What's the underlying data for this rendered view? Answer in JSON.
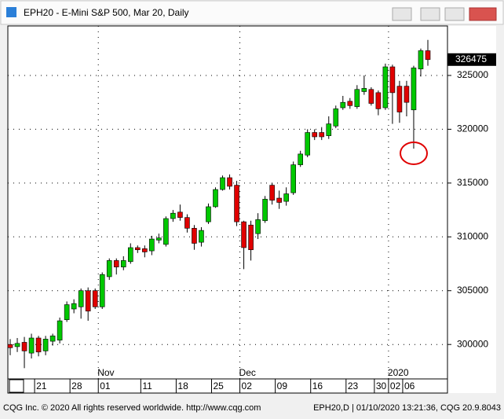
{
  "chart_data": {
    "type": "candlestick",
    "title": "EPH20 - E-Mini S&P 500, Mar 20, Daily",
    "categories": [
      null,
      null,
      null,
      null,
      "21",
      null,
      null,
      null,
      null,
      "28",
      null,
      null,
      null,
      "01",
      null,
      null,
      null,
      null,
      null,
      "11",
      null,
      null,
      null,
      null,
      "18",
      null,
      null,
      null,
      null,
      "25",
      null,
      null,
      null,
      "02",
      null,
      null,
      null,
      null,
      "09",
      null,
      null,
      null,
      null,
      "16",
      null,
      null,
      null,
      null,
      "23",
      null,
      null,
      null,
      "30",
      null,
      "02",
      null,
      "06",
      null,
      null,
      null
    ],
    "month_labels": [
      null,
      null,
      null,
      null,
      null,
      null,
      null,
      null,
      null,
      null,
      null,
      null,
      null,
      "Nov",
      null,
      null,
      null,
      null,
      null,
      null,
      null,
      null,
      null,
      null,
      null,
      null,
      null,
      null,
      null,
      null,
      null,
      null,
      null,
      "Dec",
      null,
      null,
      null,
      null,
      null,
      null,
      null,
      null,
      null,
      null,
      null,
      null,
      null,
      null,
      null,
      null,
      null,
      null,
      null,
      null,
      "2020",
      null,
      null,
      null,
      null,
      null
    ],
    "open": [
      300000,
      299800,
      300200,
      299200,
      300600,
      299400,
      300300,
      300400,
      302300,
      303300,
      303500,
      305000,
      305000,
      303500,
      306300,
      307800,
      307200,
      307700,
      309000,
      308900,
      308700,
      309700,
      309300,
      311700,
      312300,
      311800,
      310800,
      309500,
      311400,
      312800,
      314400,
      315500,
      314800,
      311400,
      311100,
      310300,
      311500,
      314800,
      313600,
      313300,
      314100,
      316700,
      317600,
      319700,
      319700,
      319400,
      320300,
      322000,
      322600,
      322100,
      323500,
      323700,
      323400,
      322000,
      325800,
      324000,
      324000,
      321800,
      325600,
      327300
    ],
    "high": [
      300500,
      300600,
      300700,
      301000,
      300800,
      300800,
      301000,
      302500,
      304000,
      304200,
      305200,
      305300,
      305200,
      306700,
      308000,
      308000,
      308200,
      309400,
      309200,
      309200,
      310100,
      310300,
      311900,
      312500,
      313000,
      312100,
      311100,
      310900,
      313100,
      314600,
      315700,
      315800,
      315200,
      311500,
      311500,
      312200,
      313800,
      315000,
      314300,
      314600,
      317000,
      318000,
      320000,
      320000,
      320200,
      321200,
      322200,
      323100,
      322900,
      324100,
      325000,
      323900,
      323600,
      326100,
      326000,
      324500,
      324500,
      325900,
      327500,
      328300
    ],
    "low": [
      299000,
      299300,
      297800,
      298700,
      298900,
      299000,
      299900,
      300100,
      302100,
      302900,
      302400,
      302200,
      303300,
      303300,
      306000,
      306500,
      306900,
      307500,
      308500,
      308100,
      308300,
      309400,
      309100,
      311400,
      311500,
      310400,
      308800,
      309100,
      311200,
      312700,
      314300,
      314400,
      311000,
      307000,
      307800,
      309800,
      311300,
      313000,
      312600,
      312900,
      313900,
      316500,
      317400,
      319000,
      319000,
      319100,
      320100,
      321800,
      321900,
      321900,
      323200,
      322200,
      321300,
      321800,
      320500,
      320600,
      321200,
      318200,
      324900,
      325900
    ],
    "close": [
      299700,
      300100,
      299400,
      300600,
      299300,
      300500,
      300800,
      302200,
      303700,
      303800,
      305000,
      303100,
      303500,
      306500,
      307800,
      307200,
      307800,
      309000,
      308800,
      308600,
      309800,
      309900,
      311700,
      312200,
      311800,
      310800,
      309400,
      310600,
      312800,
      314400,
      315500,
      314700,
      311400,
      309000,
      308800,
      311600,
      313500,
      313400,
      313200,
      314000,
      316700,
      317700,
      319700,
      319300,
      319300,
      320500,
      321900,
      322500,
      322200,
      323700,
      323800,
      322400,
      321900,
      325800,
      323400,
      321600,
      322500,
      325700,
      327300,
      326475
    ],
    "up_color": "#00c800",
    "down_color": "#e00000",
    "ylim": [
      296800,
      329600
    ],
    "yticks": [
      300000,
      305000,
      310000,
      315000,
      320000,
      325000
    ],
    "grid": true,
    "footer_left": "CQG Inc. © 2020 All rights reserved worldwide. http://www.cqg.com",
    "footer_right": "EPH20,D | 01/10/2020 13:21:36, CQG 20.9.8043"
  }
}
